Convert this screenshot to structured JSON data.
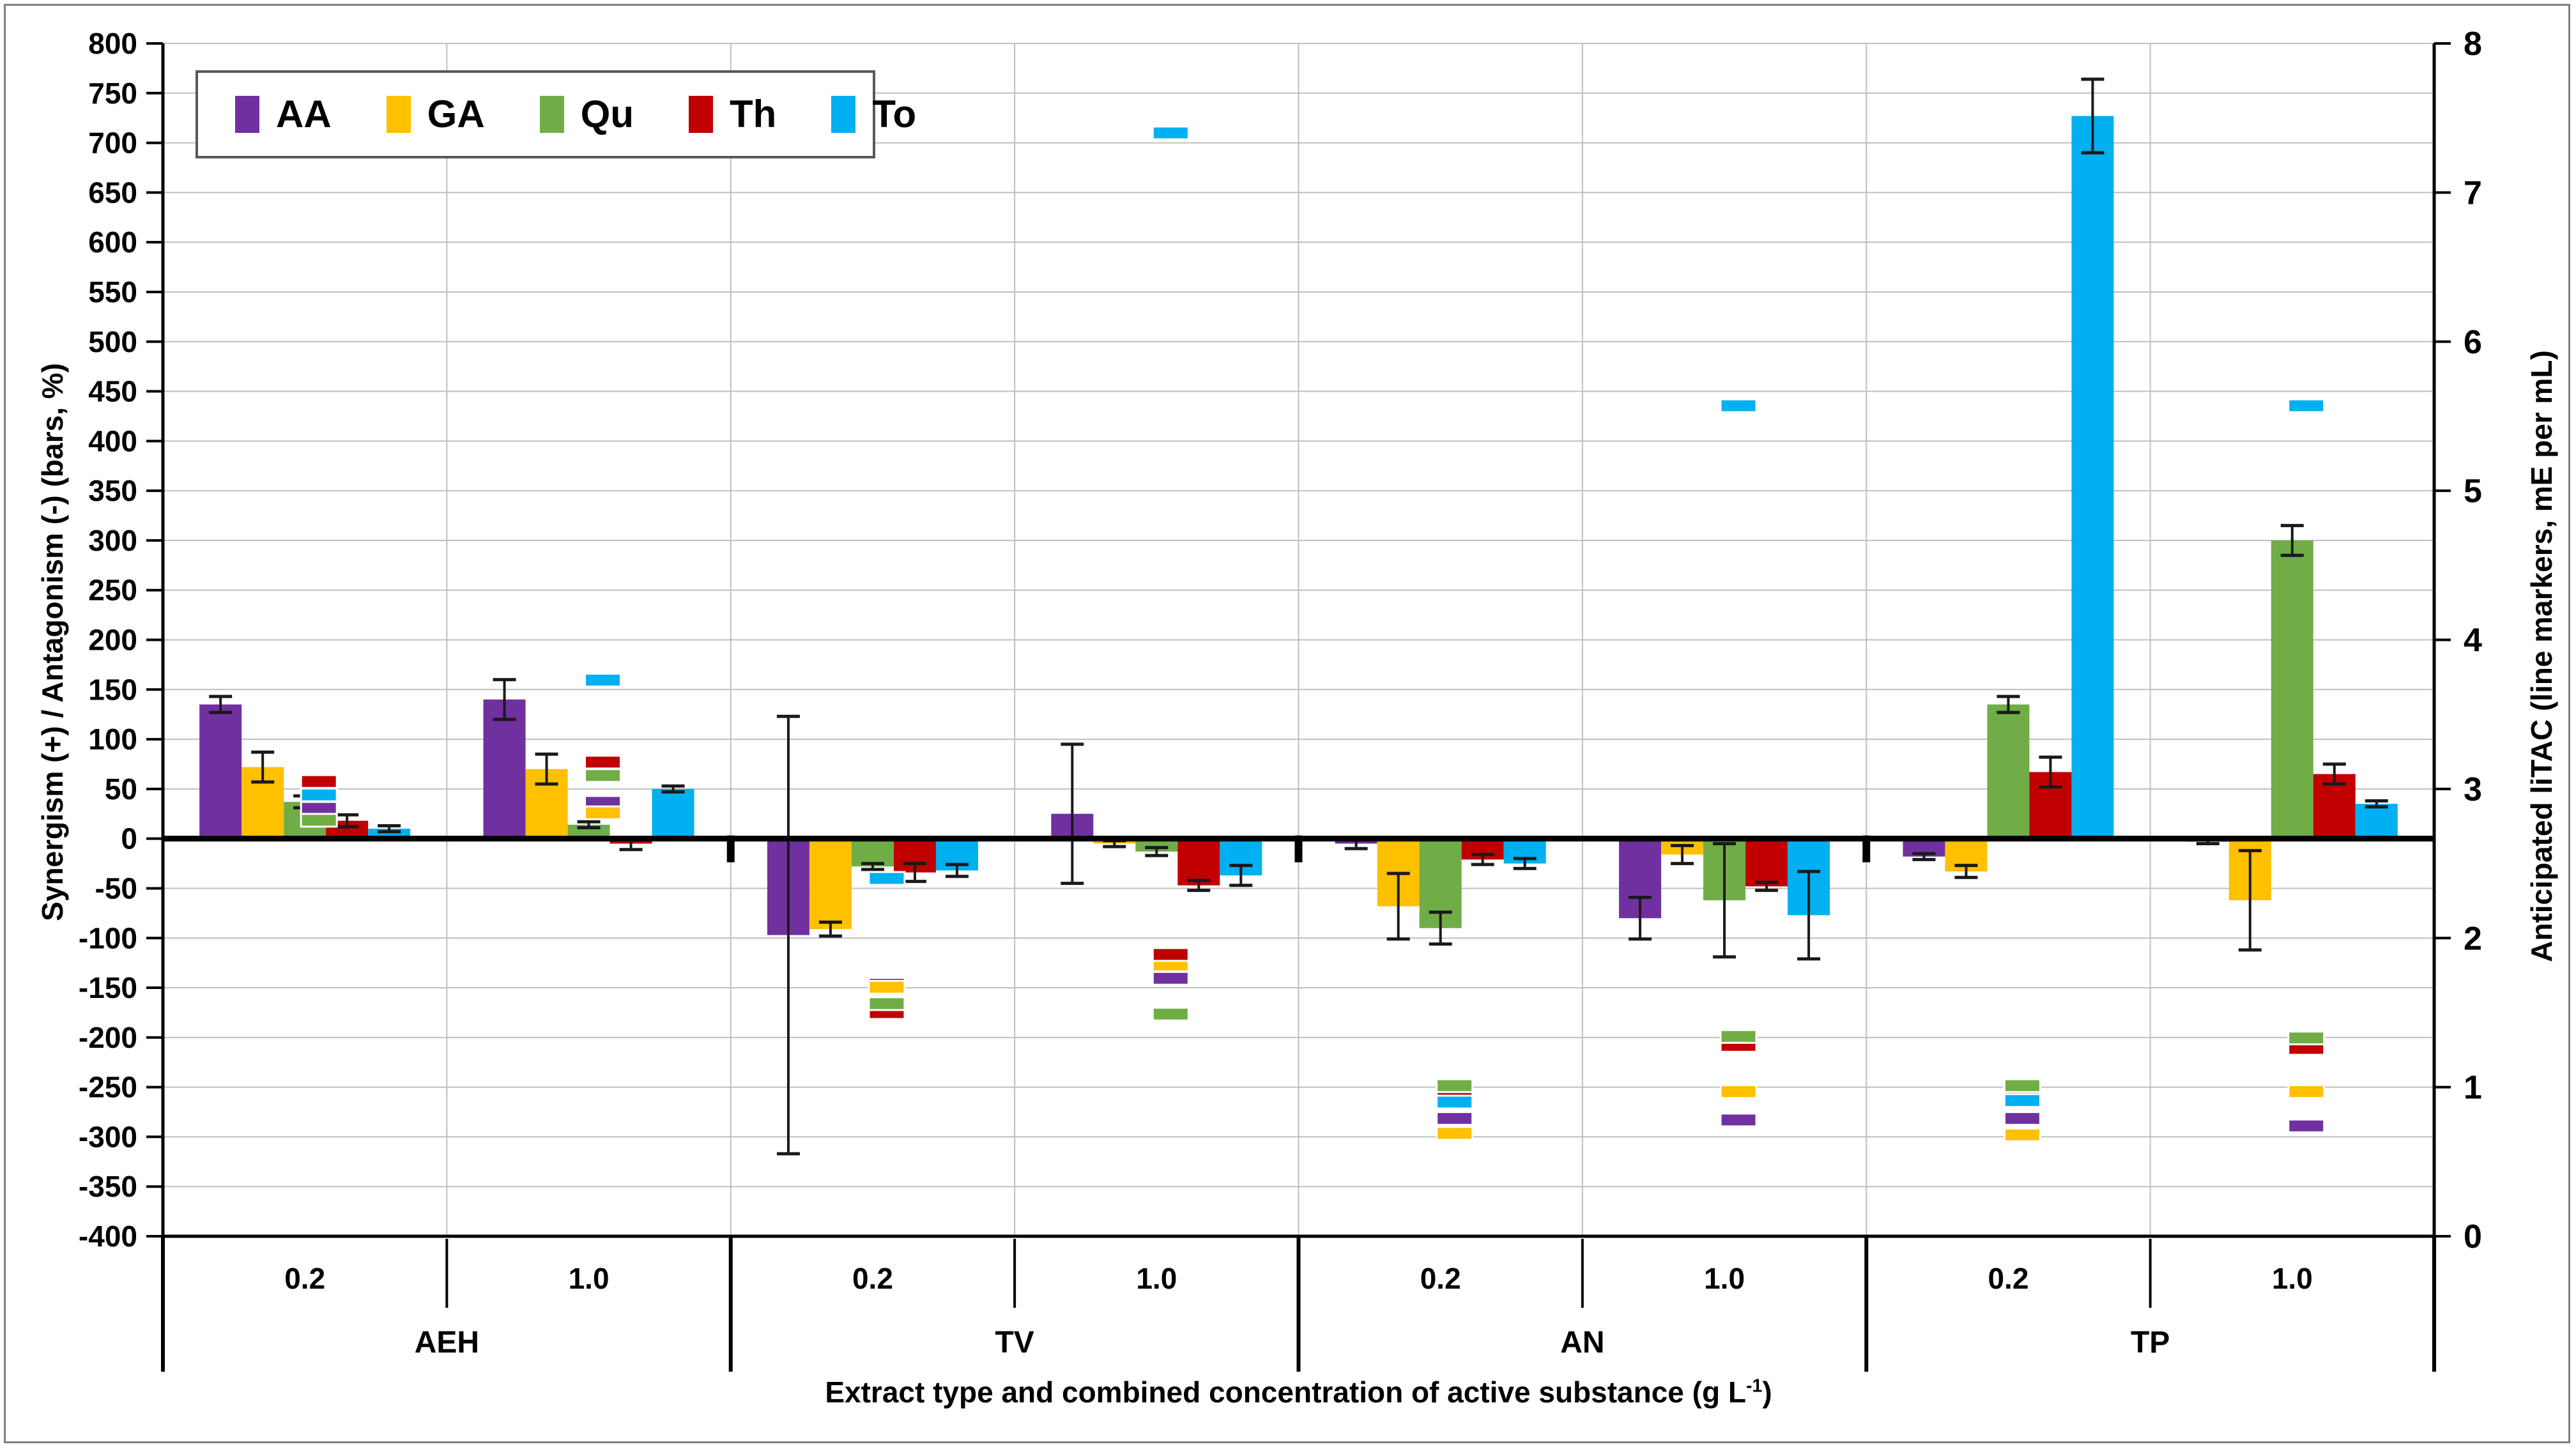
{
  "figure": {
    "y_left": {
      "title": "Synergism (+) / Antagonism (-) (bars, %)",
      "min": -400,
      "max": 800,
      "step": 50
    },
    "y_right": {
      "title": "Anticipated liTAC (line markers, mE per mL)",
      "min": 0,
      "max": 8,
      "step": 1
    },
    "x_title_prefix": "Extract type and combined concentration of active substance (g L",
    "x_title_sup": "-1",
    "x_title_suffix": ")"
  },
  "chart_data": {
    "type": "bar",
    "legend": [
      "AA",
      "GA",
      "Qu",
      "Th",
      "To"
    ],
    "colors": {
      "AA": "#7030A0",
      "GA": "#FFC000",
      "Qu": "#70AD47",
      "Th": "#C00000",
      "To": "#00B0F0"
    },
    "gridline_color": "#BFBFBF",
    "error_bar_color": "#1a1a1a",
    "axis_color": "#000000",
    "ylim_left": [
      -400,
      800
    ],
    "ylim_right": [
      0,
      8
    ],
    "grid": true,
    "legend_position": "top-left",
    "bar_units": "percent (left axis)",
    "marker_units": "mE per mL (right axis)",
    "marker_draw_order": [
      "AA",
      "GA",
      "Th",
      "To",
      "Qu"
    ],
    "extracts": [
      "AEH",
      "TV",
      "AN",
      "TP"
    ],
    "concentrations": [
      "0.2",
      "1.0"
    ],
    "groups": [
      {
        "extract": "AEH",
        "concentration": "0.2",
        "bars": {
          "AA": {
            "value": 135,
            "err": 8
          },
          "GA": {
            "value": 72,
            "err": 15
          },
          "Qu": {
            "value": 37,
            "err": 6
          },
          "Th": {
            "value": 18,
            "err": 6
          },
          "To": {
            "value": 10,
            "err": 3
          }
        },
        "markers_liTAC": {
          "AA": 2.87,
          "GA": 2.97,
          "Qu": 2.79,
          "Th": 3.05,
          "To": 2.96
        }
      },
      {
        "extract": "AEH",
        "concentration": "1.0",
        "bars": {
          "AA": {
            "value": 140,
            "err": 20
          },
          "GA": {
            "value": 70,
            "err": 15
          },
          "Qu": {
            "value": 14,
            "err": 3
          },
          "Th": {
            "value": -5,
            "err": 6
          },
          "To": {
            "value": 50,
            "err": 3
          }
        },
        "markers_liTAC": {
          "AA": 2.91,
          "GA": 2.84,
          "Qu": 3.09,
          "Th": 3.18,
          "To": 3.73
        }
      },
      {
        "extract": "TV",
        "concentration": "0.2",
        "bars": {
          "AA": {
            "value": -97,
            "err": 220
          },
          "GA": {
            "value": -91,
            "err": 7
          },
          "Qu": {
            "value": -28,
            "err": 3
          },
          "Th": {
            "value": -34,
            "err": 9
          },
          "To": {
            "value": -32,
            "err": 6
          }
        },
        "markers_liTAC": {
          "AA": 1.69,
          "GA": 1.67,
          "Qu": 1.56,
          "Th": 1.5,
          "To": 2.4
        }
      },
      {
        "extract": "TV",
        "concentration": "1.0",
        "bars": {
          "AA": {
            "value": 25,
            "err": 70
          },
          "GA": {
            "value": -5,
            "err": 3
          },
          "Qu": {
            "value": -13,
            "err": 4
          },
          "Th": {
            "value": -47,
            "err": 5
          },
          "To": {
            "value": -37,
            "err": 10
          }
        },
        "markers_liTAC": {
          "AA": 1.73,
          "GA": 1.82,
          "Qu": 1.49,
          "Th": 1.89,
          "To": 7.4
        }
      },
      {
        "extract": "AN",
        "concentration": "0.2",
        "bars": {
          "AA": {
            "value": -5,
            "err": 5
          },
          "GA": {
            "value": -68,
            "err": 33
          },
          "Qu": {
            "value": -90,
            "err": 16
          },
          "Th": {
            "value": -21,
            "err": 5
          },
          "To": {
            "value": -25,
            "err": 5
          }
        },
        "markers_liTAC": {
          "AA": 0.79,
          "GA": 0.69,
          "Qu": 1.01,
          "Th": 0.97,
          "To": 0.9
        }
      },
      {
        "extract": "AN",
        "concentration": "1.0",
        "bars": {
          "AA": {
            "value": -80,
            "err": 21
          },
          "GA": {
            "value": -16,
            "err": 9
          },
          "Qu": {
            "value": -62,
            "err": 57
          },
          "Th": {
            "value": -48,
            "err": 4
          },
          "To": {
            "value": -77,
            "err": 44
          }
        },
        "markers_liTAC": {
          "AA": 0.78,
          "GA": 0.97,
          "Qu": 1.34,
          "Th": 1.28,
          "To": 5.57
        }
      },
      {
        "extract": "TP",
        "concentration": "0.2",
        "bars": {
          "AA": {
            "value": -18,
            "err": 3
          },
          "GA": {
            "value": -33,
            "err": 6
          },
          "Qu": {
            "value": 135,
            "err": 8
          },
          "Th": {
            "value": 67,
            "err": 15
          },
          "To": {
            "value": 727,
            "err": 37
          }
        },
        "markers_liTAC": {
          "AA": 0.79,
          "GA": 0.68,
          "Qu": 1.01,
          "Th": 0.97,
          "To": 0.91
        }
      },
      {
        "extract": "TP",
        "concentration": "1.0",
        "bars": {
          "AA": {
            "value": -3,
            "err": 2
          },
          "GA": {
            "value": -62,
            "err": 50
          },
          "Qu": {
            "value": 300,
            "err": 15
          },
          "Th": {
            "value": 65,
            "err": 10
          },
          "To": {
            "value": 35,
            "err": 3
          }
        },
        "markers_liTAC": {
          "AA": 0.74,
          "GA": 0.97,
          "Qu": 1.33,
          "Th": 1.26,
          "To": 5.57
        }
      }
    ]
  }
}
